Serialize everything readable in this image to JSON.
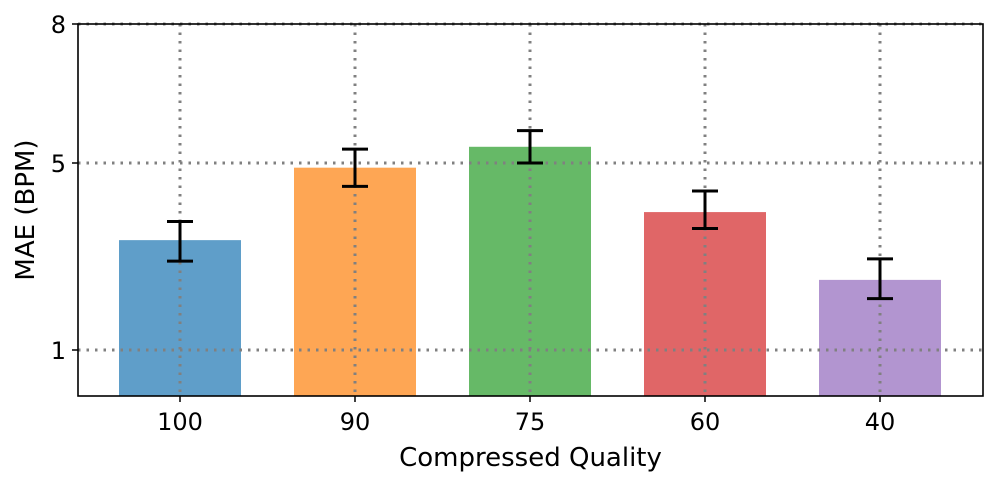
{
  "chart_data": {
    "type": "bar",
    "categories": [
      "100",
      "90",
      "75",
      "60",
      "40"
    ],
    "values": [
      3.35,
      4.9,
      5.35,
      3.95,
      2.5
    ],
    "errors": [
      [
        2.9,
        3.75
      ],
      [
        4.5,
        5.3
      ],
      [
        5.0,
        5.7
      ],
      [
        3.6,
        4.4
      ],
      [
        2.1,
        2.95
      ]
    ],
    "colors": [
      "#5f9ec9",
      "#fea654",
      "#66b967",
      "#e06667",
      "#b295d0"
    ],
    "xlabel": "Compressed Quality",
    "ylabel": "MAE (BPM)",
    "yticks": [
      1,
      5,
      8
    ],
    "ylim": [
      0,
      8
    ],
    "grid": true
  }
}
